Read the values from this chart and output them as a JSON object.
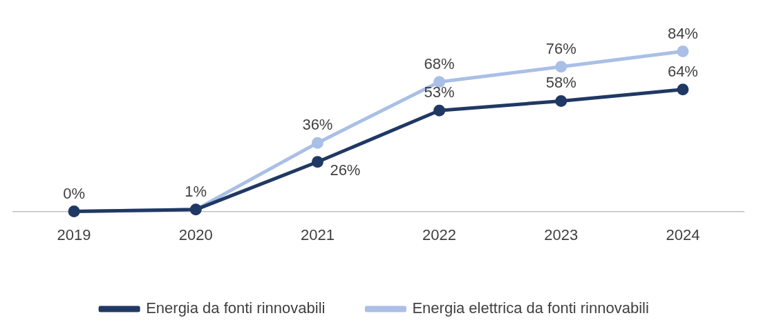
{
  "chart_data": {
    "type": "line",
    "categories": [
      "2019",
      "2020",
      "2021",
      "2022",
      "2023",
      "2024"
    ],
    "series": [
      {
        "name": "Energia da fonti rinnovabili",
        "color": "#203864",
        "values": [
          0,
          1,
          26,
          53,
          58,
          64
        ],
        "value_labels": [
          null,
          null,
          "26%",
          "53%",
          "58%",
          "64%"
        ]
      },
      {
        "name": "Energia elettrica da fonti rinnovabili",
        "color": "#a9bfe6",
        "values": [
          0,
          1,
          36,
          68,
          76,
          84
        ],
        "value_labels": [
          "0%",
          "1%",
          "36%",
          "68%",
          "76%",
          "84%"
        ]
      }
    ],
    "marker": "circle",
    "line_style": "solid",
    "grid": false,
    "legend": "bottom"
  }
}
